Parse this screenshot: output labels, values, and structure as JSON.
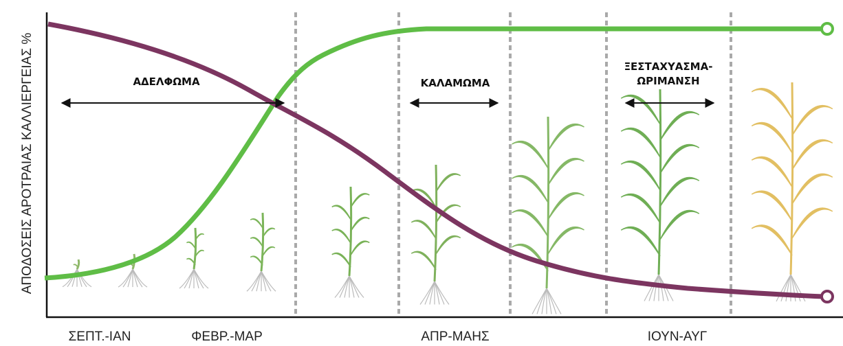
{
  "y_axis_label": "ΑΠΟΔΟΣΕΙΣ ΑΡΟΤΡΑΙΑΣ ΚΑΛΛΙΕΡΓΕΙΑΣ %",
  "phases": [
    {
      "label": "ΑΔΕΛΦΩΜΑ"
    },
    {
      "label": "ΚΑΛΑΜΩΜΑ"
    },
    {
      "label_lines": [
        "ΞΕΣΤΑΧΥΑΣΜΑ-",
        "ΩΡΙΜΑΝΣΗ"
      ]
    }
  ],
  "periods": [
    "ΣΕΠΤ.-ΙΑΝ",
    "ΦΕΒΡ.-ΜΑΡ",
    "ΑΠΡ-ΜΑΗΣ",
    "ΙΟΥΝ-ΑΥΓ"
  ]
}
